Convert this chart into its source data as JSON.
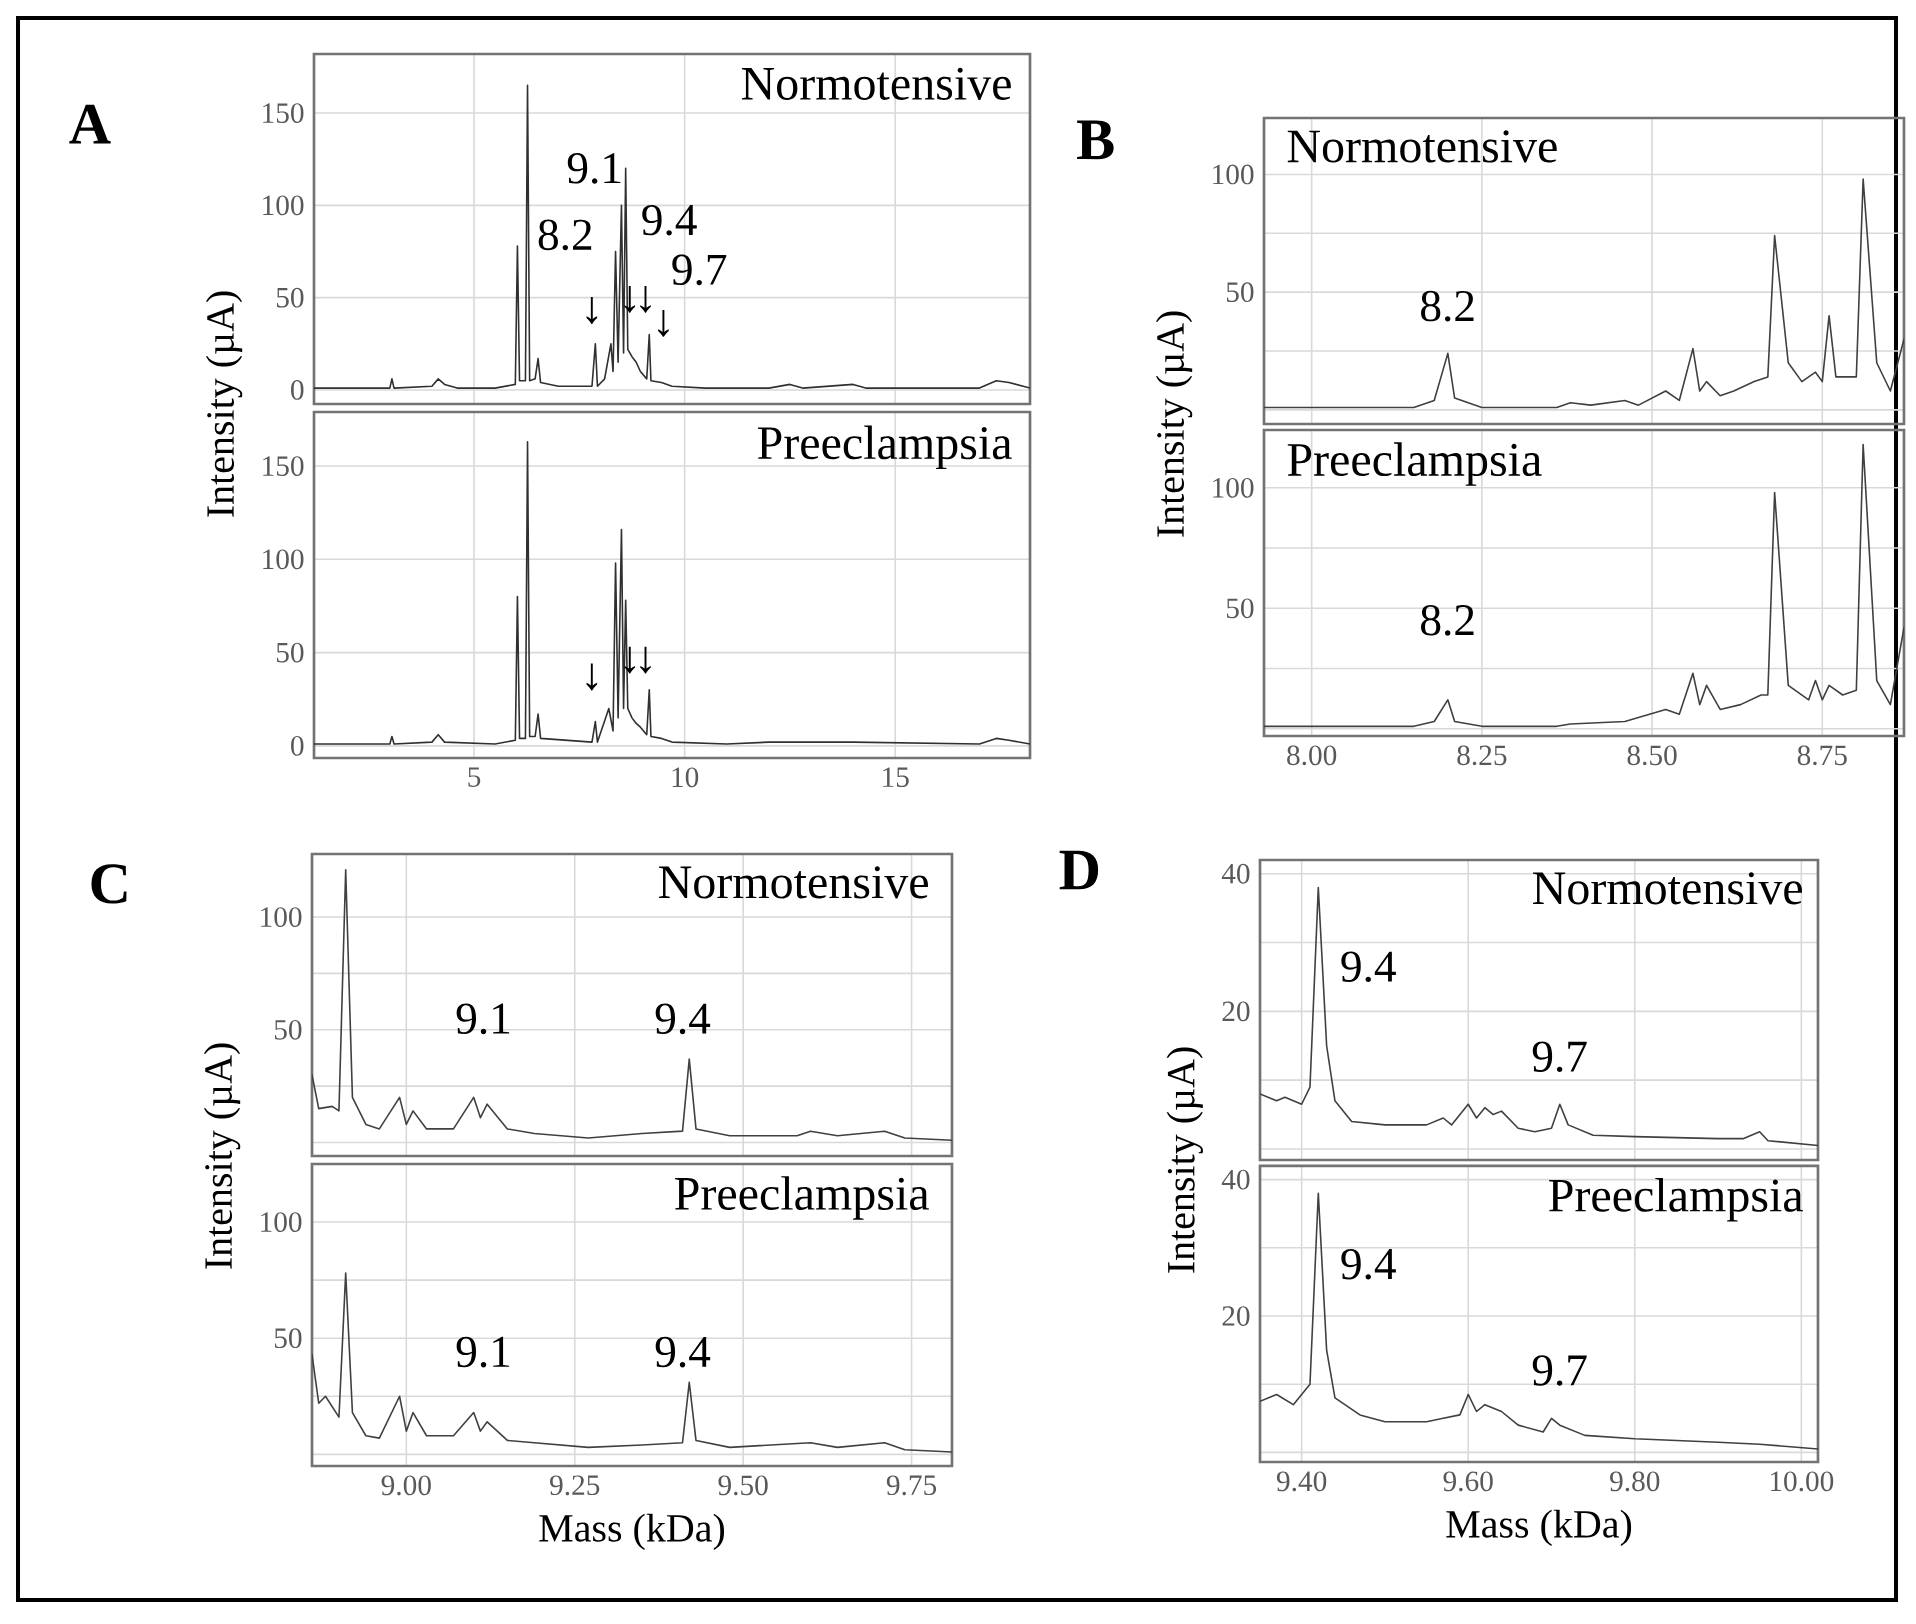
{
  "chart_data": [
    {
      "type": "line",
      "title": "A",
      "subtitle": "Normotensive",
      "ylabel": "Intensity (µA)",
      "color": "#303030",
      "grid": true,
      "tick_labels": "y",
      "x": [
        1.2,
        2.5,
        3.0,
        3.05,
        3.1,
        4.0,
        4.15,
        4.3,
        4.6,
        5.5,
        5.98,
        6.03,
        6.08,
        6.22,
        6.27,
        6.32,
        6.45,
        6.52,
        6.58,
        7.0,
        7.8,
        7.88,
        7.93,
        8.1,
        8.25,
        8.3,
        8.36,
        8.42,
        8.5,
        8.55,
        8.6,
        8.65,
        8.75,
        8.85,
        8.95,
        9.1,
        9.16,
        9.2,
        9.45,
        9.7,
        10.5,
        12.0,
        12.5,
        12.8,
        14.0,
        14.3,
        17.0,
        17.4,
        17.7,
        18.2
      ],
      "values": [
        1,
        1,
        1,
        6,
        1,
        2,
        6,
        3,
        1,
        1,
        3,
        78,
        5,
        5,
        165,
        5,
        6,
        17,
        4,
        2,
        2,
        25,
        2,
        6,
        25,
        10,
        75,
        15,
        100,
        20,
        120,
        22,
        18,
        15,
        10,
        6,
        30,
        5,
        4,
        2,
        1,
        1,
        3,
        1,
        3,
        1,
        1,
        5,
        4,
        1
      ],
      "xlim": [
        1.2,
        18.2
      ],
      "ylim": [
        -7.6,
        182
      ],
      "xticks": [
        5,
        10,
        15
      ],
      "yticks": [
        0,
        50,
        100,
        150
      ],
      "annotations": [
        "8.2",
        "9.1",
        "9.4",
        "9.7",
        "↓",
        "↓",
        "↓",
        "↓"
      ]
    },
    {
      "type": "line",
      "subtitle": "Preeclampsia",
      "color": "#303030",
      "grid": true,
      "x": [
        1.2,
        3.0,
        3.05,
        3.1,
        4.0,
        4.15,
        4.3,
        5.5,
        5.98,
        6.03,
        6.08,
        6.22,
        6.27,
        6.32,
        6.45,
        6.52,
        6.58,
        7.8,
        7.88,
        7.93,
        8.2,
        8.3,
        8.36,
        8.42,
        8.5,
        8.55,
        8.6,
        8.65,
        8.75,
        8.85,
        8.95,
        9.1,
        9.16,
        9.2,
        9.45,
        9.7,
        11.0,
        12.0,
        14.0,
        17.0,
        17.4,
        17.7,
        18.2
      ],
      "values": [
        1,
        1,
        5,
        1,
        2,
        6,
        2,
        1,
        3,
        80,
        4,
        4,
        163,
        5,
        5,
        17,
        4,
        2,
        13,
        2,
        20,
        8,
        98,
        15,
        116,
        20,
        78,
        20,
        15,
        12,
        10,
        6,
        30,
        5,
        4,
        2,
        1,
        2,
        2,
        1,
        4,
        3,
        1
      ],
      "xlim": [
        1.2,
        18.2
      ],
      "ylim": [
        -6.5,
        179
      ],
      "xticks": [
        5,
        10,
        15
      ],
      "yticks": [
        0,
        50,
        100,
        150
      ],
      "annotations": [
        "↓",
        "↓",
        "↓"
      ]
    },
    {
      "type": "line",
      "title": "B",
      "subtitle": "Normotensive",
      "ylabel": "Intensity (µA)",
      "color": "#404040",
      "grid": true,
      "tick_labels": "y",
      "x": [
        7.93,
        8.01,
        8.15,
        8.18,
        8.2,
        8.21,
        8.25,
        8.36,
        8.38,
        8.41,
        8.46,
        8.48,
        8.52,
        8.54,
        8.56,
        8.57,
        8.58,
        8.6,
        8.62,
        8.65,
        8.67,
        8.68,
        8.7,
        8.72,
        8.74,
        8.75,
        8.76,
        8.77,
        8.8,
        8.81,
        8.83,
        8.85,
        8.87
      ],
      "values": [
        1,
        1,
        1,
        4,
        24,
        5,
        1,
        1,
        3,
        2,
        4,
        2,
        8,
        4,
        26,
        8,
        12,
        6,
        8,
        12,
        14,
        74,
        20,
        12,
        16,
        12,
        40,
        14,
        14,
        98,
        20,
        8,
        30
      ],
      "xlim": [
        7.93,
        8.87
      ],
      "ylim": [
        -6,
        124
      ],
      "xticks": [
        8.0,
        8.25,
        8.5,
        8.75
      ],
      "yticks": [
        {
          "value": 0,
          "label": null
        },
        {
          "value": 25,
          "label": null
        },
        50,
        {
          "value": 75,
          "label": null
        },
        100
      ],
      "annotations": [
        "8.2"
      ]
    },
    {
      "type": "line",
      "subtitle": "Preeclampsia",
      "color": "#404040",
      "grid": true,
      "x": [
        7.93,
        8.01,
        8.15,
        8.18,
        8.2,
        8.21,
        8.25,
        8.36,
        8.38,
        8.46,
        8.52,
        8.54,
        8.56,
        8.57,
        8.58,
        8.6,
        8.63,
        8.66,
        8.67,
        8.68,
        8.7,
        8.73,
        8.74,
        8.75,
        8.76,
        8.78,
        8.8,
        8.81,
        8.83,
        8.85,
        8.87
      ],
      "values": [
        1,
        1,
        1,
        3,
        12,
        3,
        1,
        1,
        2,
        3,
        8,
        6,
        23,
        10,
        18,
        8,
        10,
        14,
        14,
        98,
        18,
        12,
        20,
        12,
        18,
        14,
        16,
        118,
        20,
        10,
        42
      ],
      "xlim": [
        7.93,
        8.87
      ],
      "ylim": [
        -3,
        124
      ],
      "xticks": [
        {
          "value": 8.0,
          "label": "8.00"
        },
        {
          "value": 8.25,
          "label": "8.25"
        },
        {
          "value": 8.5,
          "label": "8.50"
        },
        {
          "value": 8.75,
          "label": "8.75"
        }
      ],
      "yticks": [
        {
          "value": 0,
          "label": null
        },
        {
          "value": 25,
          "label": null
        },
        50,
        {
          "value": 75,
          "label": null
        },
        100
      ],
      "annotations": [
        "8.2"
      ]
    },
    {
      "type": "line",
      "title": "C",
      "subtitle": "Normotensive",
      "ylabel": "Intensity (µA)",
      "color": "#404040",
      "grid": true,
      "tick_labels": "y",
      "x": [
        8.86,
        8.87,
        8.89,
        8.9,
        8.91,
        8.92,
        8.94,
        8.96,
        8.99,
        9.0,
        9.01,
        9.03,
        9.07,
        9.1,
        9.11,
        9.12,
        9.15,
        9.19,
        9.27,
        9.35,
        9.41,
        9.42,
        9.43,
        9.48,
        9.58,
        9.6,
        9.64,
        9.71,
        9.74,
        9.81
      ],
      "values": [
        30,
        15,
        16,
        14,
        121,
        20,
        8,
        6,
        20,
        8,
        14,
        6,
        6,
        20,
        11,
        17,
        6,
        4,
        2,
        4,
        5,
        37,
        6,
        3,
        3,
        5,
        3,
        5,
        2,
        1
      ],
      "xlim": [
        8.86,
        9.81
      ],
      "ylim": [
        -6,
        128
      ],
      "xticks": [
        9.0,
        9.25,
        9.5,
        9.75
      ],
      "yticks": [
        {
          "value": 0,
          "label": null
        },
        {
          "value": 25,
          "label": null
        },
        50,
        {
          "value": 75,
          "label": null
        },
        100
      ],
      "annotations": [
        "9.1",
        "9.4"
      ]
    },
    {
      "type": "line",
      "subtitle": "Preeclampsia",
      "xlabel": "Mass (kDa)",
      "color": "#404040",
      "grid": true,
      "x": [
        8.86,
        8.87,
        8.88,
        8.9,
        8.91,
        8.92,
        8.94,
        8.96,
        8.99,
        9.0,
        9.01,
        9.03,
        9.07,
        9.1,
        9.11,
        9.12,
        9.15,
        9.19,
        9.27,
        9.35,
        9.41,
        9.42,
        9.43,
        9.48,
        9.6,
        9.64,
        9.71,
        9.74,
        9.81
      ],
      "values": [
        43,
        22,
        25,
        16,
        78,
        18,
        8,
        7,
        25,
        10,
        18,
        8,
        8,
        18,
        10,
        14,
        6,
        5,
        3,
        4,
        5,
        31,
        6,
        3,
        5,
        3,
        5,
        2,
        1
      ],
      "xlim": [
        8.86,
        9.81
      ],
      "ylim": [
        -5,
        125
      ],
      "xticks": [
        {
          "value": 9.0,
          "label": "9.00"
        },
        {
          "value": 9.25,
          "label": "9.25"
        },
        {
          "value": 9.5,
          "label": "9.50"
        },
        {
          "value": 9.75,
          "label": "9.75"
        }
      ],
      "yticks": [
        {
          "value": 0,
          "label": null
        },
        {
          "value": 25,
          "label": null
        },
        50,
        {
          "value": 75,
          "label": null
        },
        100
      ],
      "annotations": [
        "9.1",
        "9.4"
      ]
    },
    {
      "type": "line",
      "title": "D",
      "subtitle": "Normotensive",
      "ylabel": "Intensity (µA)",
      "color": "#404040",
      "grid": true,
      "tick_labels": "y",
      "x": [
        9.35,
        9.37,
        9.38,
        9.4,
        9.41,
        9.42,
        9.43,
        9.44,
        9.46,
        9.5,
        9.55,
        9.57,
        9.58,
        9.6,
        9.61,
        9.62,
        9.63,
        9.64,
        9.66,
        9.68,
        9.7,
        9.71,
        9.72,
        9.75,
        9.8,
        9.9,
        9.93,
        9.95,
        9.96,
        10.02
      ],
      "values": [
        8,
        7,
        7.5,
        6.5,
        9,
        38,
        15,
        7,
        4,
        3.5,
        3.5,
        4.5,
        3.5,
        6.5,
        4.5,
        6,
        5,
        5.5,
        3,
        2.5,
        3,
        6.5,
        3.5,
        2,
        1.8,
        1.5,
        1.5,
        2.5,
        1.2,
        0.5
      ],
      "xlim": [
        9.35,
        10.02
      ],
      "ylim": [
        -1.6,
        42
      ],
      "xticks": [
        9.4,
        9.6,
        9.8,
        10.0
      ],
      "yticks": [
        {
          "value": 0,
          "label": null
        },
        {
          "value": 10,
          "label": null
        },
        20,
        {
          "value": 30,
          "label": null
        },
        40
      ],
      "annotations": [
        "9.4",
        "9.7"
      ]
    },
    {
      "type": "line",
      "subtitle": "Preeclampsia",
      "xlabel": "Mass (kDa)",
      "color": "#404040",
      "grid": true,
      "x": [
        9.35,
        9.37,
        9.39,
        9.41,
        9.42,
        9.43,
        9.44,
        9.47,
        9.5,
        9.55,
        9.57,
        9.59,
        9.6,
        9.61,
        9.62,
        9.64,
        9.66,
        9.69,
        9.7,
        9.71,
        9.74,
        9.8,
        9.9,
        9.95,
        10.02
      ],
      "values": [
        7.5,
        8.5,
        7,
        10,
        38,
        15,
        8,
        5.5,
        4.5,
        4.5,
        5,
        5.5,
        8.5,
        6,
        7,
        6,
        4,
        3,
        5,
        4,
        2.5,
        2,
        1.5,
        1.2,
        0.5
      ],
      "xlim": [
        9.35,
        10.02
      ],
      "ylim": [
        -1.4,
        42
      ],
      "xticks": [
        {
          "value": 9.4,
          "label": "9.40"
        },
        {
          "value": 9.6,
          "label": "9.60"
        },
        {
          "value": 9.8,
          "label": "9.80"
        },
        {
          "value": 10.0,
          "label": "10.00"
        }
      ],
      "yticks": [
        {
          "value": 0,
          "label": null
        },
        {
          "value": 10,
          "label": null
        },
        20,
        {
          "value": 30,
          "label": null
        },
        40
      ],
      "annotations": [
        "9.4",
        "9.7"
      ]
    }
  ]
}
